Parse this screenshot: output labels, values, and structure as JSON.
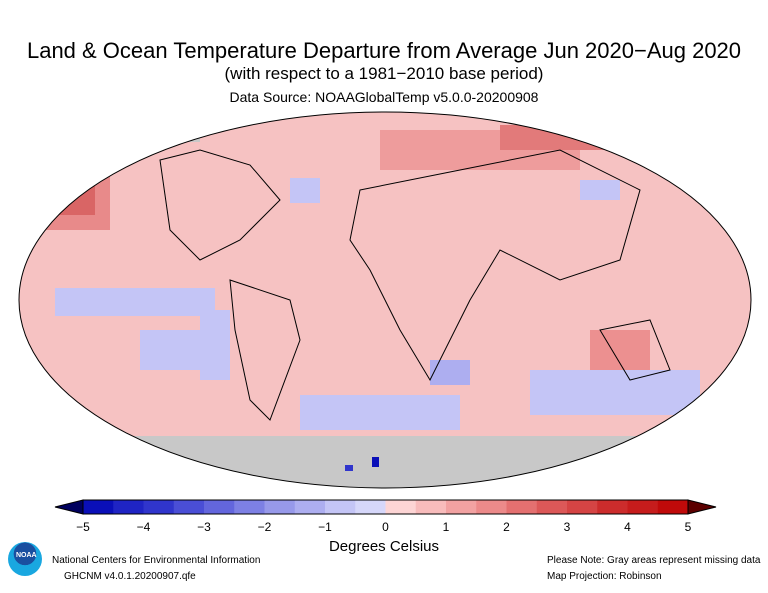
{
  "header": {
    "title": "Land & Ocean Temperature Departure from Average Jun 2020−Aug 2020",
    "subtitle": "(with respect to a 1981−2010 base period)",
    "source": "Data Source: NOAAGlobalTemp v5.0.0-20200908"
  },
  "legend": {
    "ticks": [
      "−5",
      "−4",
      "−3",
      "−2",
      "−1",
      "0",
      "1",
      "2",
      "3",
      "4",
      "5"
    ],
    "units": "Degrees Celsius",
    "colors": [
      "#0a0fb8",
      "#1f24c4",
      "#3035cc",
      "#4a4ed6",
      "#6366dd",
      "#7d80e4",
      "#9799ea",
      "#adaef0",
      "#c4c5f6",
      "#d6d7fa",
      "#fdd5d5",
      "#f8bcbc",
      "#f2a2a2",
      "#ec8a8a",
      "#e47070",
      "#dc5858",
      "#d54444",
      "#cc2c2c",
      "#c61c1c",
      "#c00a0a"
    ],
    "under_color": "#00005e",
    "over_color": "#5c0000",
    "missing_color": "#c8c8c8"
  },
  "footer": {
    "org": "National Centers for Environmental Information",
    "dataset": "GHCNM v4.0.1.20200907.qfe",
    "note": "Please Note: Gray areas represent missing data",
    "projection": "Map Projection: Robinson",
    "logo_text": "NOAA"
  }
}
